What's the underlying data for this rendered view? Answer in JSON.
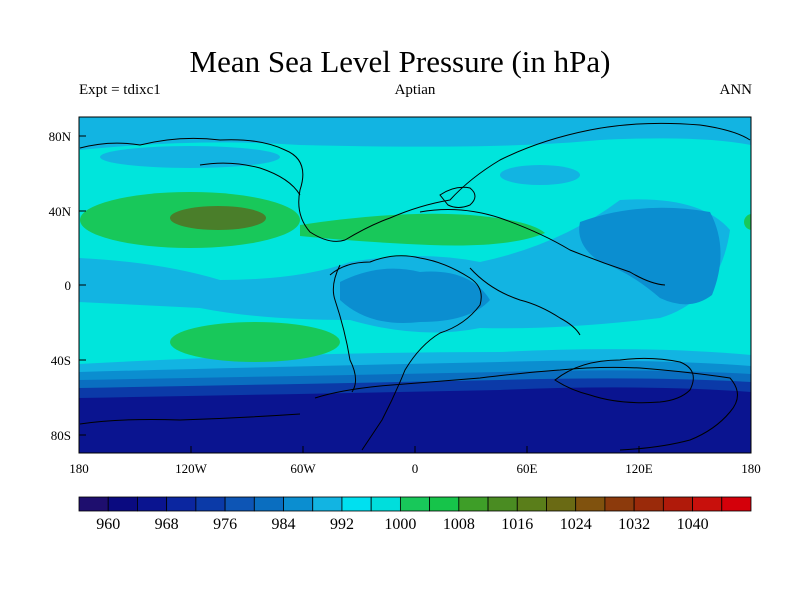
{
  "title": "Mean Sea Level Pressure (in hPa)",
  "subtitle_left": "Expt = tdixc1",
  "subtitle_center": "Aptian",
  "subtitle_right": "ANN",
  "lat_labels": [
    "80N",
    "40N",
    "0",
    "40S",
    "80S"
  ],
  "lon_labels": [
    "180",
    "120W",
    "60W",
    "0",
    "60E",
    "120E",
    "180"
  ],
  "colorbar": {
    "labels": [
      "960",
      "968",
      "976",
      "984",
      "992",
      "1000",
      "1008",
      "1016",
      "1024",
      "1032",
      "1040"
    ],
    "colors": [
      "#1e0e6e",
      "#0a0a80",
      "#0a1490",
      "#0b26a0",
      "#0b3aa8",
      "#0d55b5",
      "#0a6ec0",
      "#0b8ed0",
      "#12b4e2",
      "#00e0f0",
      "#00dedc",
      "#18c85a",
      "#16c44a",
      "#3e9e28",
      "#4a8c22",
      "#5a7e1a",
      "#6a6a14",
      "#80520e",
      "#8c3a0c",
      "#9a2a0a",
      "#b01a0a",
      "#c8100c",
      "#d4000a"
    ]
  },
  "colors": {
    "background": "#00e5dc",
    "level_994": "#12b4e2",
    "level_988": "#0b8ed0",
    "level_982": "#0a6ec0",
    "level_976": "#0b3aa8",
    "level_970": "#0a1490",
    "level_1004": "#18c85a",
    "level_1012": "#4a7e2a"
  }
}
